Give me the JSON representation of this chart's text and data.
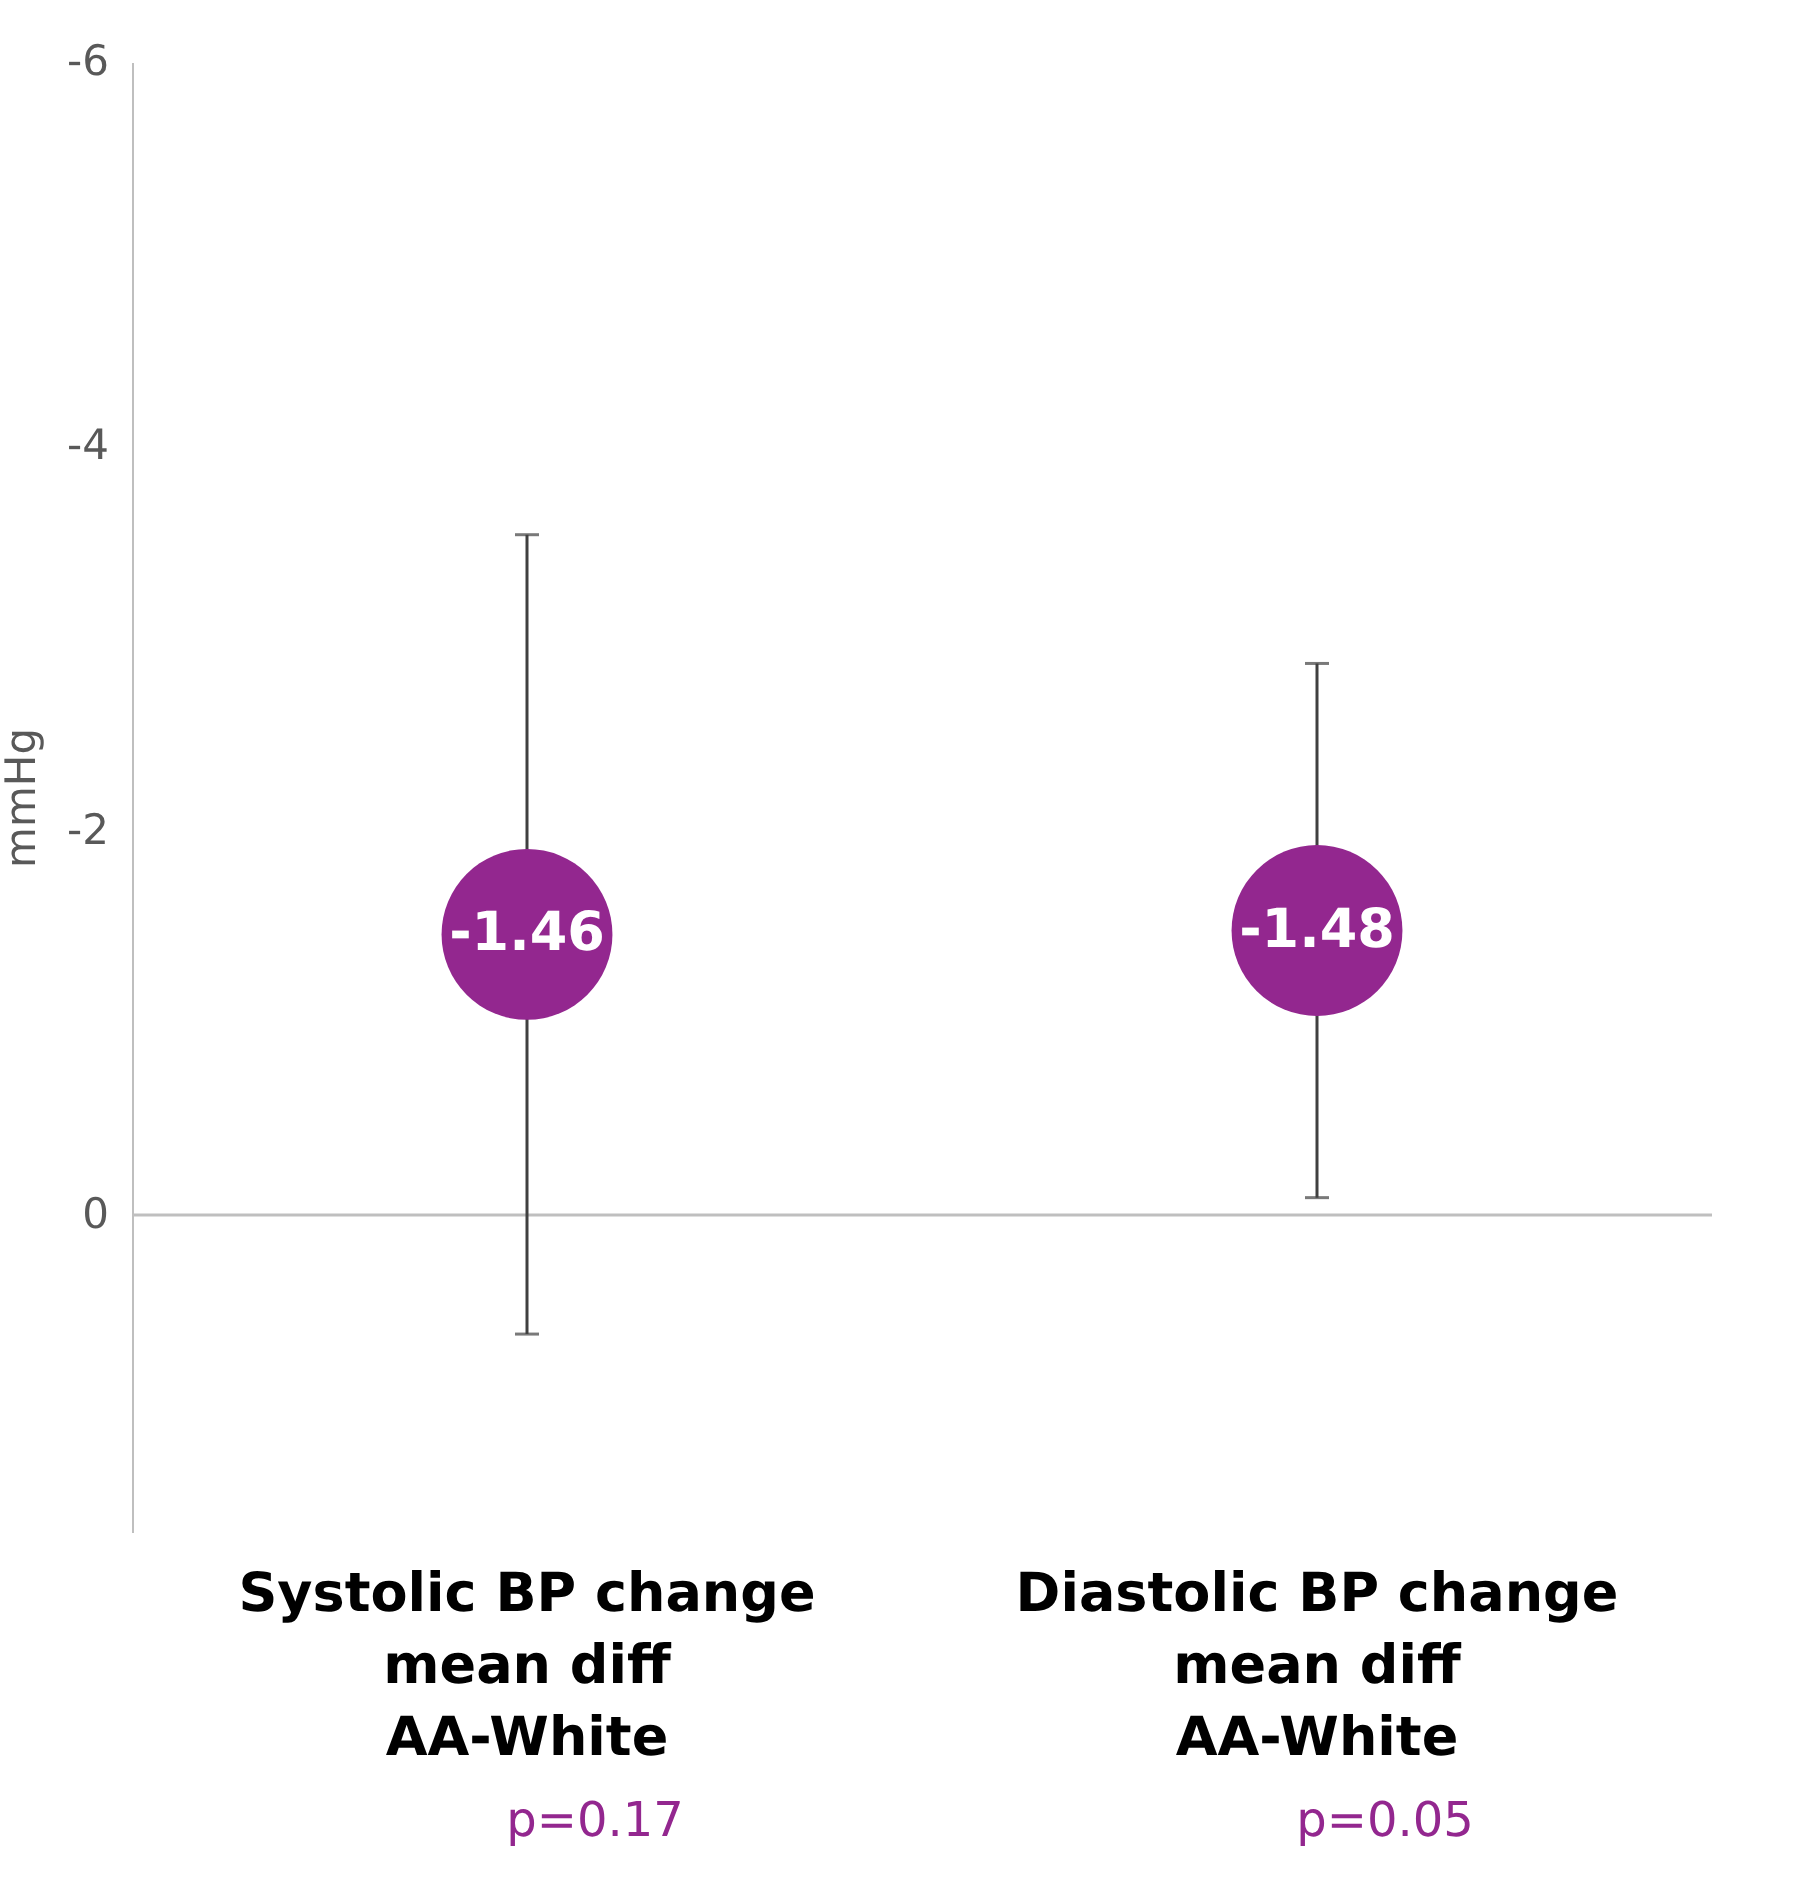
{
  "chart_data": {
    "type": "scatter",
    "ylabel": "mmHg",
    "categories": [
      "Systolic BP change\nmean diff\nAA-White",
      "Diastolic BP change\nmean diff\nAA-White"
    ],
    "series": [
      {
        "color": "#93278f",
        "values": [
          -1.46,
          -1.48
        ],
        "errors": [
          2.08,
          1.39
        ]
      }
    ],
    "data_labels": true,
    "marker": "circle",
    "ylim": [
      1.65,
      -6
    ],
    "yticks": [
      -6,
      -4,
      -2,
      0
    ],
    "ref_lines": [
      {
        "axis": "y",
        "value": 0,
        "color": "#bfbfbf"
      }
    ],
    "annotations": [
      "p=0.17",
      "p=0.05"
    ]
  }
}
